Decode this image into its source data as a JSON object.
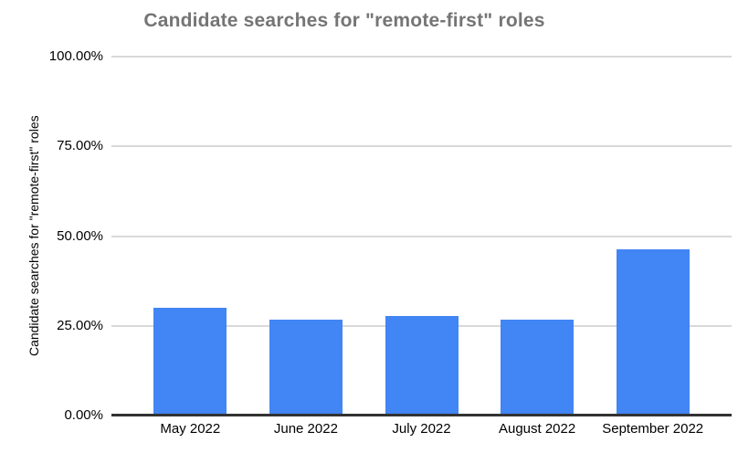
{
  "colors": {
    "bar": "#4285f4",
    "title_text": "#757575",
    "axis_text": "#000000",
    "gridline": "#d9d9d9",
    "axis_line": "#333333",
    "background": "#ffffff"
  },
  "chart_data": {
    "type": "bar",
    "title": "Candidate searches for \"remote-first\" roles",
    "xlabel": "",
    "ylabel": "Candidate searches for \"remote-first\" roles",
    "categories": [
      "May 2022",
      "June 2022",
      "July 2022",
      "August 2022",
      "September 2022"
    ],
    "values": [
      30,
      26.7,
      27.8,
      26.6,
      46.3
    ],
    "ylim": [
      0,
      100
    ],
    "y_ticks": [
      "0.00%",
      "25.00%",
      "50.00%",
      "75.00%",
      "100.00%"
    ],
    "y_tick_values": [
      0,
      25,
      50,
      75,
      100
    ],
    "grid": true,
    "legend": false,
    "bar_color": "#4285f4"
  }
}
